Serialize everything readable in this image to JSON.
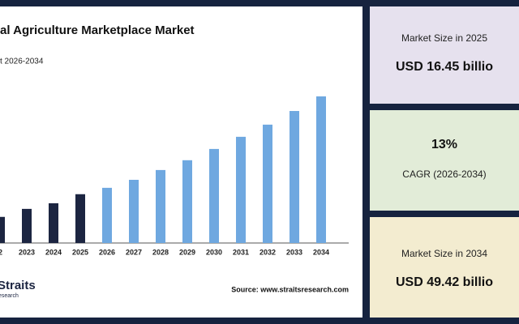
{
  "chart_data": {
    "type": "bar",
    "title": "al Agriculture Marketplace Market",
    "subtitle": "t 2026-2034",
    "categories": [
      "22",
      "2023",
      "2024",
      "2025",
      "2026",
      "2027",
      "2028",
      "2029",
      "2030",
      "2031",
      "2032",
      "2033",
      "2034"
    ],
    "values": [
      8.8,
      11.5,
      13.4,
      16.45,
      18.6,
      21.3,
      24.6,
      27.9,
      31.7,
      35.8,
      39.9,
      44.5,
      49.42
    ],
    "colors": [
      "#1c2541",
      "#1c2541",
      "#1c2541",
      "#1c2541",
      "#6fa8e0",
      "#6fa8e0",
      "#6fa8e0",
      "#6fa8e0",
      "#6fa8e0",
      "#6fa8e0",
      "#6fa8e0",
      "#6fa8e0",
      "#6fa8e0"
    ],
    "source": "Source: www.straitsresearch.com",
    "logo": {
      "name": "Straits",
      "sub": "esearch"
    }
  },
  "cards": [
    {
      "label": "Market Size in 2025",
      "value": "USD 16.45 billio",
      "color": "#e6e1ee"
    },
    {
      "value": "13%",
      "label": "CAGR (2026-2034)",
      "color": "#e2ecd8"
    },
    {
      "label": "Market Size in 2034",
      "value": "USD 49.42 billio",
      "color": "#f3ecd0"
    }
  ]
}
